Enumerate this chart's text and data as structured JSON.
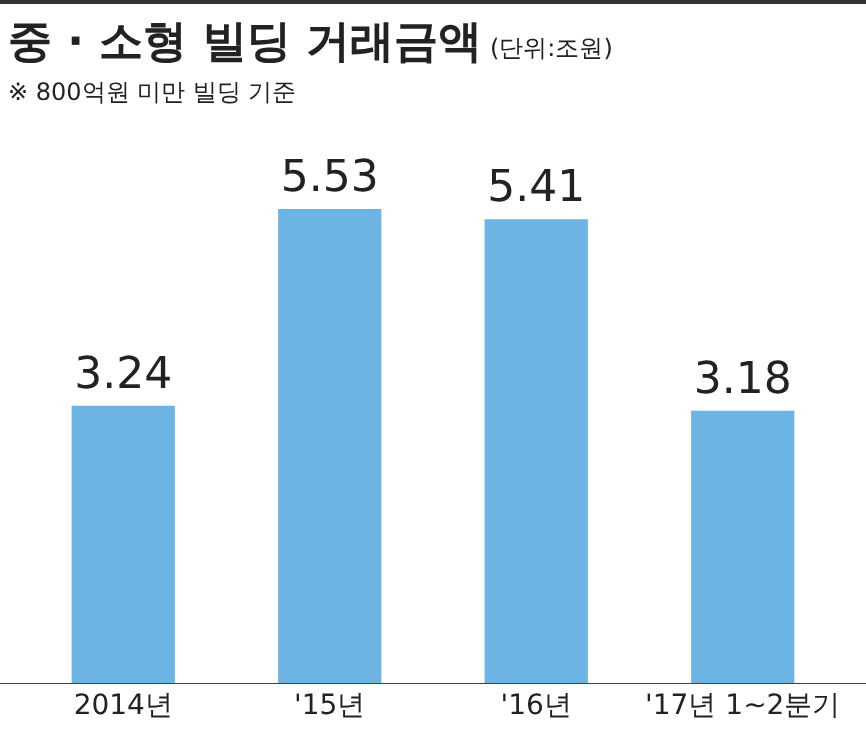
{
  "chart_data": {
    "type": "bar",
    "title": "중 · 소형 빌딩 거래금액",
    "subtitle": "※ 800억원 미만 빌딩 기준",
    "annotations": [
      "(단위:조원)"
    ],
    "categories": [
      "2014년",
      "'15년",
      "'16년",
      "'17년 1~2분기"
    ],
    "values": [
      3.24,
      5.53,
      5.41,
      3.18
    ],
    "color": "#6cb4e4",
    "data_labels": true,
    "grid": false,
    "legend": false
  }
}
